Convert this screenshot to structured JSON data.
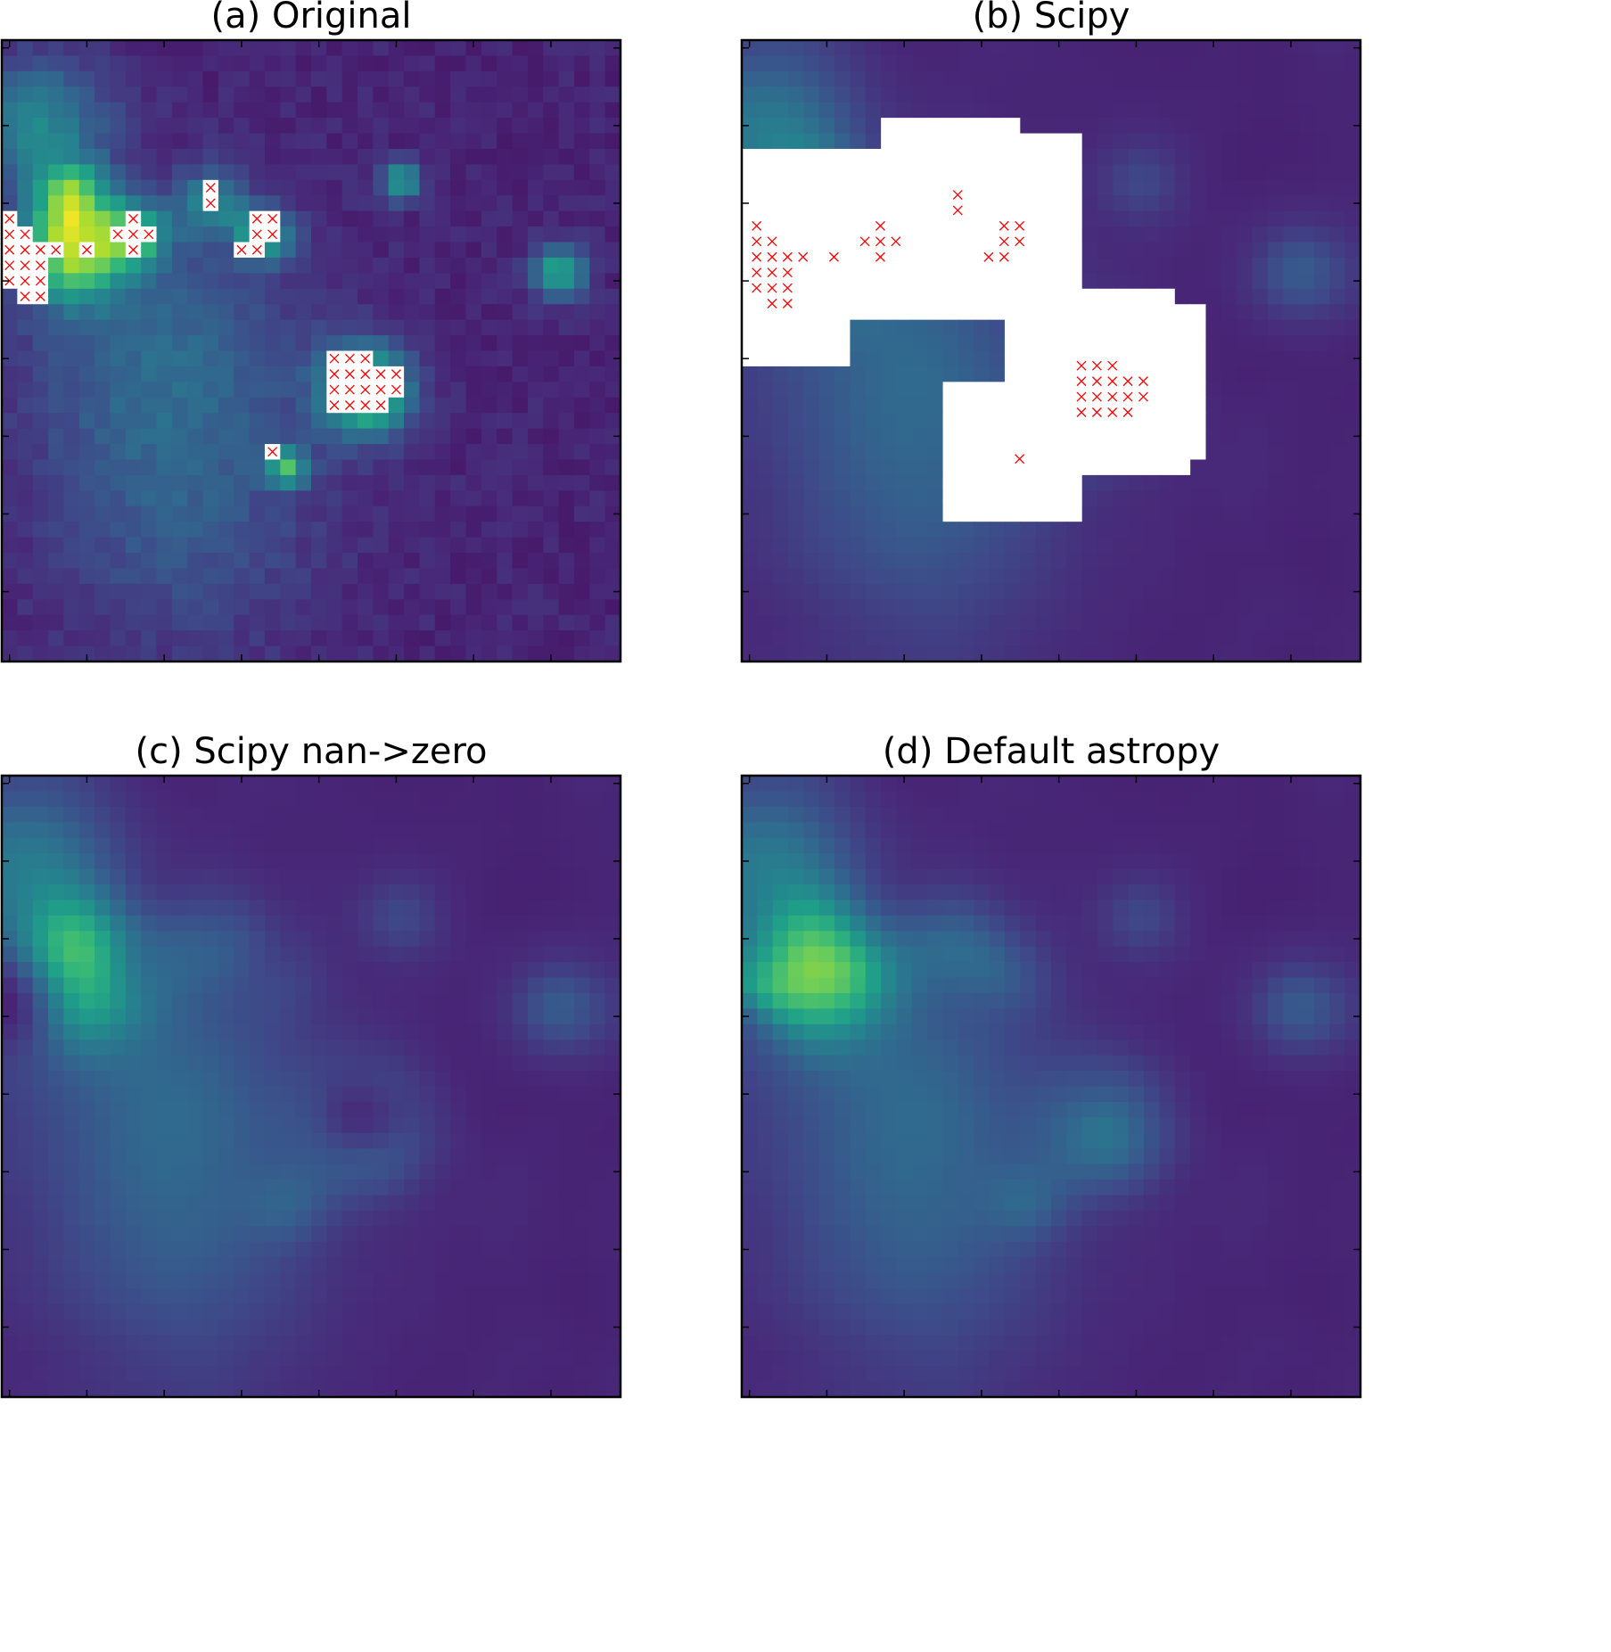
{
  "chart_data": {
    "type": "heatmap",
    "grid_size": [
      40,
      40
    ],
    "colormap": "viridis",
    "value_range": [
      0,
      1
    ],
    "tick_step": 5,
    "tick_labels_shown": false,
    "nan_color": "#ffffff",
    "marker_color": "#ff0000",
    "marker": "x",
    "panels": [
      {
        "id": "a",
        "title": "(a) Original",
        "method": "raw"
      },
      {
        "id": "b",
        "title": "(b) Scipy",
        "method": "convolve_nan_propagate"
      },
      {
        "id": "c",
        "title": "(c) Scipy nan->zero",
        "method": "convolve_nan_zero"
      },
      {
        "id": "d",
        "title": "(d) Default astropy",
        "method": "convolve_nan_interpolate"
      }
    ],
    "kernel_sigma_cells": 1.6,
    "background_level": 0.09,
    "noise_level": 0.07,
    "sources": [
      {
        "col": 2,
        "row": 5,
        "amp": 0.35,
        "sigma": 3
      },
      {
        "col": 4,
        "row": 13,
        "amp": 0.7,
        "sigma": 2.3
      },
      {
        "col": 4,
        "row": 9.5,
        "amp": 0.45,
        "sigma": 1.5
      },
      {
        "col": 8,
        "row": 12,
        "amp": 0.5,
        "sigma": 1.5
      },
      {
        "col": 13,
        "row": 10,
        "amp": 0.35,
        "sigma": 1.5
      },
      {
        "col": 16.5,
        "row": 12,
        "amp": 0.55,
        "sigma": 1.2
      },
      {
        "col": 25.3,
        "row": 8.6,
        "amp": 0.45,
        "sigma": 0.9
      },
      {
        "col": 35.5,
        "row": 14.5,
        "amp": 0.5,
        "sigma": 1.2
      },
      {
        "col": 23,
        "row": 22,
        "amp": 0.7,
        "sigma": 2
      },
      {
        "col": 18,
        "row": 27,
        "amp": 0.5,
        "sigma": 0.9
      },
      {
        "col": 10,
        "row": 20,
        "amp": 0.22,
        "sigma": 6
      },
      {
        "col": 11,
        "row": 31,
        "amp": 0.14,
        "sigma": 6
      }
    ],
    "nan_pixels": [
      [
        9,
        13
      ],
      [
        10,
        13
      ],
      [
        11,
        0
      ],
      [
        11,
        8
      ],
      [
        11,
        16
      ],
      [
        11,
        17
      ],
      [
        12,
        0
      ],
      [
        12,
        1
      ],
      [
        12,
        7
      ],
      [
        12,
        8
      ],
      [
        12,
        9
      ],
      [
        12,
        16
      ],
      [
        12,
        17
      ],
      [
        13,
        0
      ],
      [
        13,
        1
      ],
      [
        13,
        2
      ],
      [
        13,
        3
      ],
      [
        13,
        5
      ],
      [
        13,
        8
      ],
      [
        13,
        15
      ],
      [
        13,
        16
      ],
      [
        14,
        0
      ],
      [
        14,
        1
      ],
      [
        14,
        2
      ],
      [
        15,
        0
      ],
      [
        15,
        1
      ],
      [
        15,
        2
      ],
      [
        16,
        1
      ],
      [
        16,
        2
      ],
      [
        20,
        21
      ],
      [
        20,
        22
      ],
      [
        20,
        23
      ],
      [
        21,
        21
      ],
      [
        21,
        22
      ],
      [
        21,
        23
      ],
      [
        21,
        24
      ],
      [
        21,
        25
      ],
      [
        22,
        21
      ],
      [
        22,
        22
      ],
      [
        22,
        23
      ],
      [
        22,
        24
      ],
      [
        22,
        25
      ],
      [
        23,
        21
      ],
      [
        23,
        22
      ],
      [
        23,
        23
      ],
      [
        23,
        24
      ],
      [
        26,
        17
      ]
    ],
    "scipy_nan_region": [
      [
        9,
        5
      ],
      [
        18,
        5
      ],
      [
        18,
        6
      ],
      [
        22,
        6
      ],
      [
        22,
        16
      ],
      [
        28,
        16
      ],
      [
        28,
        17
      ],
      [
        30,
        17
      ],
      [
        30,
        27
      ],
      [
        29,
        27
      ],
      [
        29,
        28
      ],
      [
        22,
        28
      ],
      [
        22,
        31
      ],
      [
        13,
        31
      ],
      [
        13,
        22
      ],
      [
        17,
        22
      ],
      [
        17,
        18
      ],
      [
        7,
        18
      ],
      [
        7,
        21
      ],
      [
        0,
        21
      ],
      [
        0,
        7
      ],
      [
        9,
        7
      ]
    ]
  }
}
